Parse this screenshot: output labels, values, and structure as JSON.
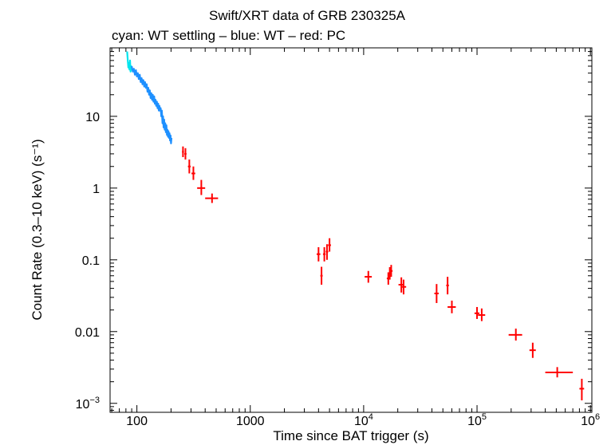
{
  "chart_data": {
    "type": "scatter",
    "title": "Swift/XRT data of GRB 230325A",
    "subtitle": "cyan: WT settling – blue: WT – red: PC",
    "xlabel": "Time since BAT trigger (s)",
    "ylabel": "Count Rate (0.3–10 keV) (s⁻¹)",
    "xscale": "log",
    "yscale": "log",
    "xlim": [
      58,
      1030000
    ],
    "ylim": [
      0.00075,
      90
    ],
    "x_tick_labels": [
      {
        "value": 100,
        "label": "100"
      },
      {
        "value": 1000,
        "label": "1000"
      },
      {
        "value": 10000,
        "base": "10",
        "exp": "4"
      },
      {
        "value": 100000,
        "base": "10",
        "exp": "5"
      },
      {
        "value": 1000000,
        "base": "10",
        "exp": "6"
      }
    ],
    "y_tick_labels": [
      {
        "value": 0.001,
        "base": "10",
        "exp": "−3"
      },
      {
        "value": 0.01,
        "label": "0.01"
      },
      {
        "value": 0.1,
        "label": "0.1"
      },
      {
        "value": 1,
        "label": "1"
      },
      {
        "value": 10,
        "label": "10"
      }
    ],
    "series": [
      {
        "name": "WT settling",
        "color": "#00e5ee",
        "style": "curve",
        "points": [
          [
            82,
            80
          ],
          [
            83,
            62
          ],
          [
            84,
            48
          ],
          [
            85,
            55
          ],
          [
            86,
            45
          ],
          [
            87,
            60
          ],
          [
            88,
            42
          ],
          [
            89,
            50
          ],
          [
            90,
            46
          ]
        ]
      },
      {
        "name": "WT",
        "color": "#1e90ff",
        "style": "curve",
        "points": [
          [
            90,
            50
          ],
          [
            92,
            42
          ],
          [
            94,
            46
          ],
          [
            96,
            38
          ],
          [
            98,
            44
          ],
          [
            100,
            36
          ],
          [
            102,
            40
          ],
          [
            104,
            33
          ],
          [
            106,
            38
          ],
          [
            108,
            30
          ],
          [
            110,
            34
          ],
          [
            112,
            28
          ],
          [
            114,
            32
          ],
          [
            116,
            26
          ],
          [
            118,
            30
          ],
          [
            120,
            25
          ],
          [
            122,
            28
          ],
          [
            124,
            22
          ],
          [
            126,
            25
          ],
          [
            128,
            20
          ],
          [
            130,
            23
          ],
          [
            132,
            18
          ],
          [
            134,
            21
          ],
          [
            136,
            17
          ],
          [
            138,
            20
          ],
          [
            140,
            16
          ],
          [
            142,
            19
          ],
          [
            144,
            15
          ],
          [
            146,
            17
          ],
          [
            148,
            14
          ],
          [
            150,
            16
          ],
          [
            152,
            13
          ],
          [
            154,
            15
          ],
          [
            156,
            12
          ],
          [
            158,
            14
          ],
          [
            160,
            12
          ],
          [
            162,
            13
          ],
          [
            164,
            10
          ],
          [
            166,
            12
          ],
          [
            168,
            8
          ],
          [
            170,
            10
          ],
          [
            172,
            7
          ],
          [
            174,
            9
          ],
          [
            176,
            6.5
          ],
          [
            178,
            8
          ],
          [
            180,
            6
          ],
          [
            182,
            7.5
          ],
          [
            184,
            5.5
          ],
          [
            186,
            6.5
          ],
          [
            188,
            5.2
          ],
          [
            190,
            6.2
          ],
          [
            192,
            5
          ],
          [
            194,
            5.8
          ],
          [
            196,
            4.6
          ],
          [
            198,
            5.4
          ],
          [
            200,
            4.2
          ],
          [
            202,
            5
          ]
        ]
      },
      {
        "name": "PC",
        "color": "#ff0000",
        "style": "errorbar",
        "points": [
          {
            "x": 255,
            "y": 3.2,
            "xerr": [
              5,
              5
            ],
            "yerr": [
              0.5,
              0.6
            ]
          },
          {
            "x": 268,
            "y": 3.0,
            "xerr": [
              6,
              6
            ],
            "yerr": [
              0.5,
              0.6
            ]
          },
          {
            "x": 290,
            "y": 2.0,
            "xerr": [
              8,
              8
            ],
            "yerr": [
              0.4,
              0.5
            ]
          },
          {
            "x": 315,
            "y": 1.6,
            "xerr": [
              12,
              12
            ],
            "yerr": [
              0.3,
              0.4
            ]
          },
          {
            "x": 370,
            "y": 1.0,
            "xerr": [
              30,
              30
            ],
            "yerr": [
              0.2,
              0.3
            ]
          },
          {
            "x": 460,
            "y": 0.72,
            "xerr": [
              60,
              60
            ],
            "yerr": [
              0.1,
              0.12
            ]
          },
          {
            "x": 4000,
            "y": 0.12,
            "xerr": [
              150,
              150
            ],
            "yerr": [
              0.025,
              0.03
            ]
          },
          {
            "x": 4250,
            "y": 0.06,
            "xerr": [
              100,
              100
            ],
            "yerr": [
              0.015,
              0.02
            ]
          },
          {
            "x": 4500,
            "y": 0.12,
            "xerr": [
              120,
              120
            ],
            "yerr": [
              0.025,
              0.03
            ]
          },
          {
            "x": 4750,
            "y": 0.13,
            "xerr": [
              120,
              120
            ],
            "yerr": [
              0.03,
              0.035
            ]
          },
          {
            "x": 5000,
            "y": 0.16,
            "xerr": [
              150,
              150
            ],
            "yerr": [
              0.03,
              0.04
            ]
          },
          {
            "x": 11000,
            "y": 0.058,
            "xerr": [
              800,
              800
            ],
            "yerr": [
              0.01,
              0.012
            ]
          },
          {
            "x": 16500,
            "y": 0.055,
            "xerr": [
              500,
              500
            ],
            "yerr": [
              0.01,
              0.012
            ]
          },
          {
            "x": 17000,
            "y": 0.065,
            "xerr": [
              500,
              500
            ],
            "yerr": [
              0.012,
              0.014
            ]
          },
          {
            "x": 17500,
            "y": 0.07,
            "xerr": [
              500,
              500
            ],
            "yerr": [
              0.012,
              0.015
            ]
          },
          {
            "x": 21500,
            "y": 0.045,
            "xerr": [
              1200,
              1200
            ],
            "yerr": [
              0.01,
              0.012
            ]
          },
          {
            "x": 22500,
            "y": 0.042,
            "xerr": [
              1200,
              1200
            ],
            "yerr": [
              0.009,
              0.011
            ]
          },
          {
            "x": 44000,
            "y": 0.034,
            "xerr": [
              2000,
              2000
            ],
            "yerr": [
              0.009,
              0.012
            ]
          },
          {
            "x": 55000,
            "y": 0.044,
            "xerr": [
              1500,
              1500
            ],
            "yerr": [
              0.011,
              0.014
            ]
          },
          {
            "x": 60000,
            "y": 0.022,
            "xerr": [
              5000,
              5000
            ],
            "yerr": [
              0.004,
              0.005
            ]
          },
          {
            "x": 100000,
            "y": 0.018,
            "xerr": [
              5000,
              5000
            ],
            "yerr": [
              0.003,
              0.004
            ]
          },
          {
            "x": 110000,
            "y": 0.017,
            "xerr": [
              8000,
              8000
            ],
            "yerr": [
              0.003,
              0.004
            ]
          },
          {
            "x": 220000,
            "y": 0.009,
            "xerr": [
              30000,
              30000
            ],
            "yerr": [
              0.0015,
              0.002
            ]
          },
          {
            "x": 310000,
            "y": 0.0055,
            "xerr": [
              20000,
              20000
            ],
            "yerr": [
              0.0012,
              0.0015
            ]
          },
          {
            "x": 510000,
            "y": 0.0027,
            "xerr": [
              110000,
              190000
            ],
            "yerr": [
              0.0004,
              0.0005
            ]
          },
          {
            "x": 840000,
            "y": 0.0016,
            "xerr": [
              40000,
              40000
            ],
            "yerr": [
              0.0005,
              0.0006
            ]
          }
        ]
      }
    ]
  }
}
